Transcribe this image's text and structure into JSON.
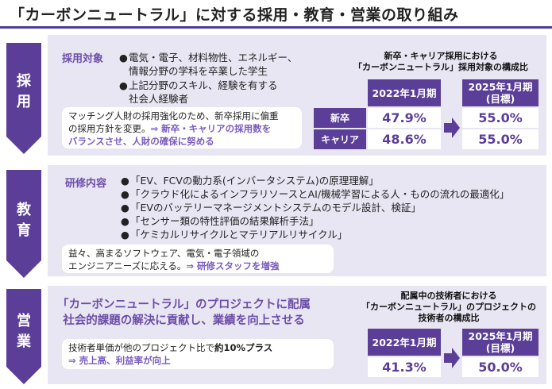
{
  "title": "「カーボンニュートラル」に対する採用・教育・営業の取り組み",
  "sections": {
    "adopt": {
      "label": "採用",
      "heading": "採用対象",
      "bullets": [
        [
          "電気・電子、材料物性、エネルギー、",
          "情報分野の学科を卒業した学生"
        ],
        [
          "上記分野のスキル、経験を有する",
          "社会人経験者"
        ]
      ],
      "note": {
        "line1": "マッチング人財の採用強化のため、新卒採用に偏重",
        "line2a": "の採用方針を変更。",
        "line2b": "⇒ 新卒・キャリアの採用数を",
        "line3": "バランスさせ、人財の確保に努める"
      },
      "caption": [
        "新卒・キャリア採用における",
        "「カーボンニュートラル」採用対象の構成比"
      ],
      "col1": "2022年1月期",
      "col2": [
        "2025年1月期",
        "(目標)"
      ],
      "rows": [
        {
          "label": "新卒",
          "v1": "47.9%",
          "v2": "55.0%"
        },
        {
          "label": "キャリア",
          "v1": "48.6%",
          "v2": "55.0%"
        }
      ]
    },
    "edu": {
      "label": "教育",
      "heading": "研修内容",
      "bullets": [
        "「EV、FCVの動力系(インバータシステム)の原理理解」",
        "「クラウド化によるインフラリソースとAI/機械学習による人・ものの流れの最適化」",
        "「EVのバッテリーマネージメントシステムのモデル設計、検証」",
        "「センサー類の特性評価の結果解析手法」",
        "「ケミカルリサイクルとマテリアルリサイクル」"
      ],
      "note": {
        "line1": "益々、高まるソフトウェア、電気・電子領域の",
        "line2a": "エンジニアニーズに応える。",
        "line2b": "⇒ 研修スタッフを増強"
      }
    },
    "sales": {
      "label": "営業",
      "headline": [
        "「カーボンニュートラル」のプロジェクトに配属",
        "社会的課題の解決に貢献し、業績を向上させる"
      ],
      "note": {
        "line1a": "技術者単価が他のプロジェクト比で",
        "line1b": "約10%プラス",
        "line2": "⇒ 売上高、利益率が向上"
      },
      "caption": [
        "配属中の技術者における",
        "「カーボンニュートラル」のプロジェクトの",
        "技術者の構成比"
      ],
      "col1": "2022年1月期",
      "col2": [
        "2025年1月期",
        "(目標)"
      ],
      "v1": "41.3%",
      "v2": "50.0%"
    }
  },
  "colors": {
    "accent": "#5b3e98",
    "panel": "#e9e6f3",
    "highlight": "#7a5cc0",
    "chevron": "#5b3e98"
  }
}
